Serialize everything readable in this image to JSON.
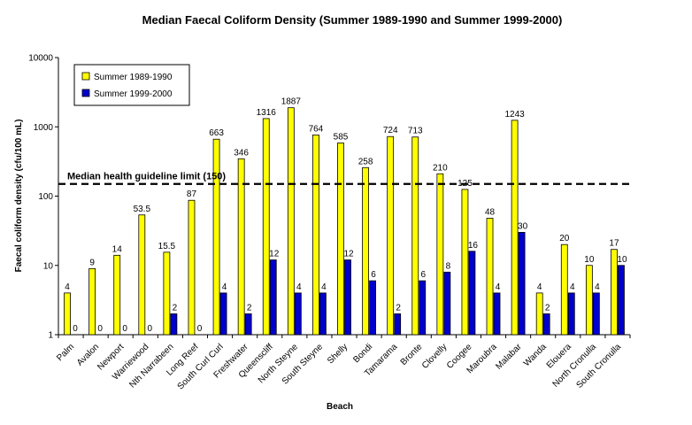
{
  "chart_data": {
    "type": "bar",
    "title": "Median Faecal Coliform Density (Summer 1989-1990 and Summer 1999-2000)",
    "xlabel": "Beach",
    "ylabel": "Faecal coliform density (cfu/100 mL)",
    "yscale": "log",
    "ylim": [
      1,
      10000
    ],
    "yticks": [
      "1",
      "10",
      "100",
      "1000",
      "10000"
    ],
    "grid": false,
    "legend_position": "top-left",
    "categories": [
      "Palm",
      "Avalon",
      "Newport",
      "Warriewood",
      "Nth Narrabeen",
      "Long Reef",
      "South Curl Curl",
      "Freshwater",
      "Queenscliff",
      "North Steyne",
      "South Steyne",
      "Shelly",
      "Bondi",
      "Tamarama",
      "Bronte",
      "Clovelly",
      "Coogee",
      "Maroubra",
      "Malabar",
      "Wanda",
      "Elouera",
      "North Cronulla",
      "South Cronulla"
    ],
    "series": [
      {
        "name": "Summer 1989-1990",
        "color": "#ffff00",
        "values": [
          4,
          9,
          14,
          53.5,
          15.5,
          87,
          663,
          346,
          1316,
          1887,
          764,
          585,
          258,
          724,
          713,
          210,
          125,
          48,
          1243,
          4,
          20,
          10,
          17
        ],
        "labels": [
          "4",
          "9",
          "14",
          "53.5",
          "15.5",
          "87",
          "663",
          "346",
          "1316",
          "1887",
          "764",
          "585",
          "258",
          "724",
          "713",
          "210",
          "125",
          "48",
          "1243",
          "4",
          "20",
          "10",
          "17"
        ]
      },
      {
        "name": "Summer 1999-2000",
        "color": "#0000cc",
        "values": [
          0,
          0,
          0,
          0,
          2,
          0,
          4,
          2,
          12,
          4,
          4,
          12,
          6,
          2,
          6,
          8,
          16,
          4,
          30,
          2,
          4,
          4,
          10
        ],
        "labels": [
          "0",
          "0",
          "0",
          "0",
          "2",
          "0",
          "4",
          "2",
          "12",
          "4",
          "4",
          "12",
          "6",
          "2",
          "6",
          "8",
          "16",
          "4",
          "30",
          "2",
          "4",
          "4",
          "10"
        ]
      }
    ],
    "reference_line": {
      "label": "Median health guideline limit (150)",
      "value": 150,
      "style": "dashed"
    }
  }
}
